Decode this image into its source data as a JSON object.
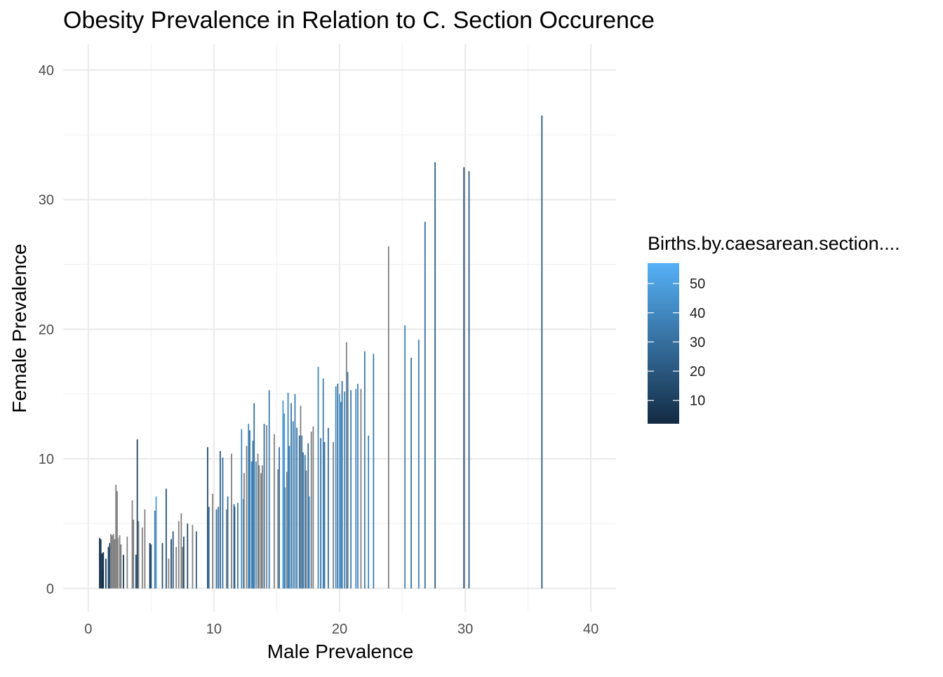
{
  "chart_data": {
    "type": "bar",
    "title": "Obesity Prevalence in Relation to C. Section Occurence",
    "xlabel": "Male Prevalence",
    "ylabel": "Female Prevalence",
    "xlim": [
      -2,
      42
    ],
    "ylim": [
      -1.8,
      42
    ],
    "x_ticks": [
      0,
      10,
      20,
      30,
      40
    ],
    "y_ticks": [
      0,
      10,
      20,
      30,
      40
    ],
    "x_tick_labels": [
      "0",
      "10",
      "20",
      "30",
      "40"
    ],
    "y_tick_labels": [
      "0",
      "10",
      "20",
      "30",
      "40"
    ],
    "grid": true,
    "legend": {
      "title": "Births.by.caesarean.section....",
      "placement": "right",
      "range": [
        2,
        57
      ],
      "ticks": [
        10,
        20,
        30,
        40,
        50
      ],
      "tick_labels": [
        "10",
        "20",
        "30",
        "40",
        "50"
      ],
      "low_color": "#132b43",
      "high_color": "#56b1f7"
    },
    "na_color": "#808080",
    "bars": [
      {
        "x": 0.9,
        "y": 3.9,
        "c": 5
      },
      {
        "x": 1.0,
        "y": 3.8,
        "c": 4
      },
      {
        "x": 1.1,
        "y": 2.7,
        "c": 6
      },
      {
        "x": 1.2,
        "y": 2.8,
        "c": 5
      },
      {
        "x": 1.15,
        "y": 1.5,
        "c": 3
      },
      {
        "x": 1.4,
        "y": 2.3,
        "c": 8
      },
      {
        "x": 1.6,
        "y": 3.2,
        "c": 12
      },
      {
        "x": 1.7,
        "y": 3.5,
        "c": 15
      },
      {
        "x": 1.8,
        "y": 4.2,
        "c": null
      },
      {
        "x": 1.9,
        "y": 4.1,
        "c": null
      },
      {
        "x": 2.0,
        "y": 4.2,
        "c": null
      },
      {
        "x": 2.1,
        "y": 3.8,
        "c": null
      },
      {
        "x": 2.2,
        "y": 8.0,
        "c": null
      },
      {
        "x": 2.3,
        "y": 7.5,
        "c": null
      },
      {
        "x": 2.35,
        "y": 3.9,
        "c": null
      },
      {
        "x": 2.5,
        "y": 4.1,
        "c": null
      },
      {
        "x": 2.6,
        "y": 3.4,
        "c": null
      },
      {
        "x": 2.8,
        "y": 2.6,
        "c": 8
      },
      {
        "x": 3.1,
        "y": 4.0,
        "c": null
      },
      {
        "x": 3.5,
        "y": 6.8,
        "c": null
      },
      {
        "x": 3.6,
        "y": 5.3,
        "c": null
      },
      {
        "x": 3.8,
        "y": 2.6,
        "c": 14
      },
      {
        "x": 3.9,
        "y": 11.5,
        "c": 12
      },
      {
        "x": 4.0,
        "y": 5.2,
        "c": null
      },
      {
        "x": 4.3,
        "y": 4.7,
        "c": null
      },
      {
        "x": 4.5,
        "y": 6.1,
        "c": null
      },
      {
        "x": 4.9,
        "y": 3.5,
        "c": 10
      },
      {
        "x": 5.0,
        "y": 3.4,
        "c": 18
      },
      {
        "x": 5.3,
        "y": 6.0,
        "c": 35
      },
      {
        "x": 5.4,
        "y": 7.1,
        "c": 48
      },
      {
        "x": 5.9,
        "y": 3.5,
        "c": 16
      },
      {
        "x": 6.2,
        "y": 7.7,
        "c": 18
      },
      {
        "x": 6.4,
        "y": 2.3,
        "c": null
      },
      {
        "x": 6.6,
        "y": 3.8,
        "c": 14
      },
      {
        "x": 6.75,
        "y": 4.4,
        "c": 20
      },
      {
        "x": 7.0,
        "y": 3.2,
        "c": null
      },
      {
        "x": 7.2,
        "y": 5.2,
        "c": null
      },
      {
        "x": 7.4,
        "y": 5.8,
        "c": null
      },
      {
        "x": 7.5,
        "y": 3.2,
        "c": null
      },
      {
        "x": 7.6,
        "y": 4.0,
        "c": 16
      },
      {
        "x": 7.9,
        "y": 5.0,
        "c": 14
      },
      {
        "x": 8.3,
        "y": 4.9,
        "c": null
      },
      {
        "x": 8.6,
        "y": 4.4,
        "c": 22
      },
      {
        "x": 9.5,
        "y": 10.9,
        "c": 14
      },
      {
        "x": 9.6,
        "y": 6.3,
        "c": 30
      },
      {
        "x": 9.9,
        "y": 7.3,
        "c": null
      },
      {
        "x": 10.2,
        "y": 6.1,
        "c": 28
      },
      {
        "x": 10.35,
        "y": 6.3,
        "c": 30
      },
      {
        "x": 10.5,
        "y": 10.6,
        "c": 22
      },
      {
        "x": 10.7,
        "y": 10.1,
        "c": 30
      },
      {
        "x": 11.0,
        "y": 6.1,
        "c": null
      },
      {
        "x": 11.1,
        "y": 7.1,
        "c": 30
      },
      {
        "x": 11.4,
        "y": 10.4,
        "c": null
      },
      {
        "x": 11.6,
        "y": 6.5,
        "c": 24
      },
      {
        "x": 11.65,
        "y": 6.3,
        "c": 22
      },
      {
        "x": 11.9,
        "y": 6.6,
        "c": 35
      },
      {
        "x": 12.2,
        "y": 12.3,
        "c": 40
      },
      {
        "x": 12.35,
        "y": 6.9,
        "c": 38
      },
      {
        "x": 12.4,
        "y": 8.9,
        "c": null
      },
      {
        "x": 12.6,
        "y": 11.0,
        "c": null
      },
      {
        "x": 12.75,
        "y": 12.7,
        "c": 40
      },
      {
        "x": 12.85,
        "y": 12.2,
        "c": 32
      },
      {
        "x": 13.0,
        "y": 9.8,
        "c": 38
      },
      {
        "x": 13.1,
        "y": 11.4,
        "c": 36
      },
      {
        "x": 13.2,
        "y": 14.3,
        "c": 30
      },
      {
        "x": 13.35,
        "y": 9.8,
        "c": 42
      },
      {
        "x": 13.5,
        "y": 10.4,
        "c": null
      },
      {
        "x": 13.6,
        "y": 9.5,
        "c": null
      },
      {
        "x": 13.75,
        "y": 8.9,
        "c": null
      },
      {
        "x": 13.85,
        "y": 9.5,
        "c": null
      },
      {
        "x": 14.0,
        "y": 12.7,
        "c": 30
      },
      {
        "x": 14.2,
        "y": 12.6,
        "c": null
      },
      {
        "x": 14.4,
        "y": 15.3,
        "c": 36
      },
      {
        "x": 14.8,
        "y": 11.9,
        "c": null
      },
      {
        "x": 15.1,
        "y": 9.2,
        "c": null
      },
      {
        "x": 15.2,
        "y": 10.9,
        "c": 30
      },
      {
        "x": 15.5,
        "y": 14.5,
        "c": 45
      },
      {
        "x": 15.6,
        "y": 13.5,
        "c": 46
      },
      {
        "x": 15.65,
        "y": 7.8,
        "c": 36
      },
      {
        "x": 15.8,
        "y": 9.0,
        "c": null
      },
      {
        "x": 15.9,
        "y": 15.1,
        "c": 38
      },
      {
        "x": 16.0,
        "y": 11.0,
        "c": 36
      },
      {
        "x": 16.15,
        "y": 14.3,
        "c": 32
      },
      {
        "x": 16.3,
        "y": 12.9,
        "c": 36
      },
      {
        "x": 16.45,
        "y": 15.0,
        "c": 35
      },
      {
        "x": 16.6,
        "y": 12.4,
        "c": 32
      },
      {
        "x": 16.8,
        "y": 11.8,
        "c": 30
      },
      {
        "x": 16.9,
        "y": 14.1,
        "c": null
      },
      {
        "x": 17.0,
        "y": 11.8,
        "c": 38
      },
      {
        "x": 17.1,
        "y": 10.5,
        "c": 30
      },
      {
        "x": 17.25,
        "y": 10.3,
        "c": 32
      },
      {
        "x": 17.35,
        "y": 9.1,
        "c": null
      },
      {
        "x": 17.5,
        "y": 11.2,
        "c": 30
      },
      {
        "x": 17.6,
        "y": 7.1,
        "c": 52
      },
      {
        "x": 17.75,
        "y": 12.1,
        "c": null
      },
      {
        "x": 17.9,
        "y": 12.5,
        "c": null
      },
      {
        "x": 18.3,
        "y": 17.1,
        "c": 40
      },
      {
        "x": 18.5,
        "y": 11.6,
        "c": 30
      },
      {
        "x": 18.7,
        "y": 16.2,
        "c": 36
      },
      {
        "x": 18.8,
        "y": 11.3,
        "c": 32
      },
      {
        "x": 19.1,
        "y": 12.4,
        "c": 30
      },
      {
        "x": 19.5,
        "y": 11.3,
        "c": null
      },
      {
        "x": 19.7,
        "y": 15.6,
        "c": 42
      },
      {
        "x": 19.85,
        "y": 15.8,
        "c": 30
      },
      {
        "x": 20.0,
        "y": 15.0,
        "c": 48
      },
      {
        "x": 20.1,
        "y": 14.4,
        "c": 42
      },
      {
        "x": 20.2,
        "y": 16.0,
        "c": 30
      },
      {
        "x": 20.4,
        "y": 15.2,
        "c": 40
      },
      {
        "x": 20.55,
        "y": 19.0,
        "c": null
      },
      {
        "x": 20.65,
        "y": 16.7,
        "c": 36
      },
      {
        "x": 20.9,
        "y": 15.3,
        "c": 34
      },
      {
        "x": 21.3,
        "y": 15.4,
        "c": 38
      },
      {
        "x": 21.45,
        "y": 15.8,
        "c": 40
      },
      {
        "x": 21.7,
        "y": 15.4,
        "c": null
      },
      {
        "x": 22.0,
        "y": 18.3,
        "c": 34
      },
      {
        "x": 22.3,
        "y": 11.8,
        "c": 38
      },
      {
        "x": 22.7,
        "y": 18.1,
        "c": 36
      },
      {
        "x": 23.9,
        "y": 26.4,
        "c": null
      },
      {
        "x": 25.2,
        "y": 20.3,
        "c": 36
      },
      {
        "x": 25.7,
        "y": 17.8,
        "c": 30
      },
      {
        "x": 26.3,
        "y": 19.2,
        "c": 36
      },
      {
        "x": 26.8,
        "y": 28.3,
        "c": 30
      },
      {
        "x": 27.6,
        "y": 32.9,
        "c": 24
      },
      {
        "x": 29.9,
        "y": 32.5,
        "c": 10
      },
      {
        "x": 30.3,
        "y": 32.2,
        "c": 22
      },
      {
        "x": 36.1,
        "y": 36.5,
        "c": 20
      }
    ]
  }
}
